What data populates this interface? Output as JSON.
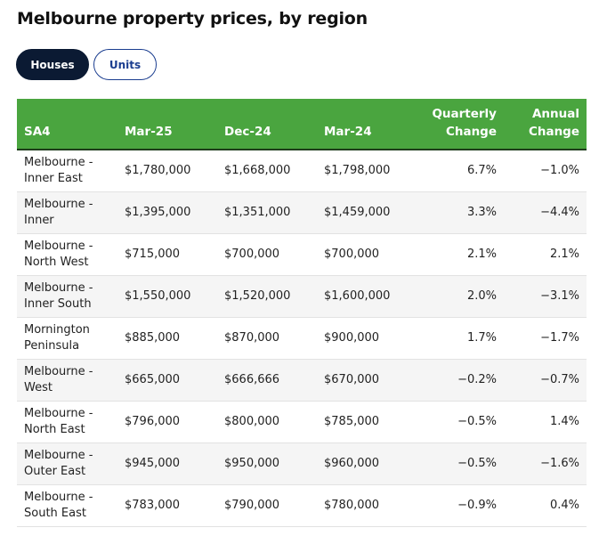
{
  "page": {
    "title": "Melbourne property prices, by region"
  },
  "tabs": [
    {
      "label": "Houses",
      "active": true
    },
    {
      "label": "Units",
      "active": false
    }
  ],
  "table": {
    "headers": [
      "SA4",
      "Mar-25",
      "Dec-24",
      "Mar-24",
      "Quarterly Change",
      "Annual Change"
    ],
    "rows": [
      [
        "Melbourne - Inner East",
        "$1,780,000",
        "$1,668,000",
        "$1,798,000",
        "6.7%",
        "−1.0%"
      ],
      [
        "Melbourne - Inner",
        "$1,395,000",
        "$1,351,000",
        "$1,459,000",
        "3.3%",
        "−4.4%"
      ],
      [
        "Melbourne - North West",
        "$715,000",
        "$700,000",
        "$700,000",
        "2.1%",
        "2.1%"
      ],
      [
        "Melbourne - Inner South",
        "$1,550,000",
        "$1,520,000",
        "$1,600,000",
        "2.0%",
        "−3.1%"
      ],
      [
        "Mornington Peninsula",
        "$885,000",
        "$870,000",
        "$900,000",
        "1.7%",
        "−1.7%"
      ],
      [
        "Melbourne - West",
        "$665,000",
        "$666,666",
        "$670,000",
        "−0.2%",
        "−0.7%"
      ],
      [
        "Melbourne - North East",
        "$796,000",
        "$800,000",
        "$785,000",
        "−0.5%",
        "1.4%"
      ],
      [
        "Melbourne - Outer East",
        "$945,000",
        "$950,000",
        "$960,000",
        "−0.5%",
        "−1.6%"
      ],
      [
        "Melbourne - South East",
        "$783,000",
        "$790,000",
        "$780,000",
        "−0.9%",
        "0.4%"
      ]
    ]
  },
  "colors": {
    "header_green": "#4aa53f",
    "tab_active": "#0b1a33",
    "tab_border": "#1a3d8f"
  }
}
